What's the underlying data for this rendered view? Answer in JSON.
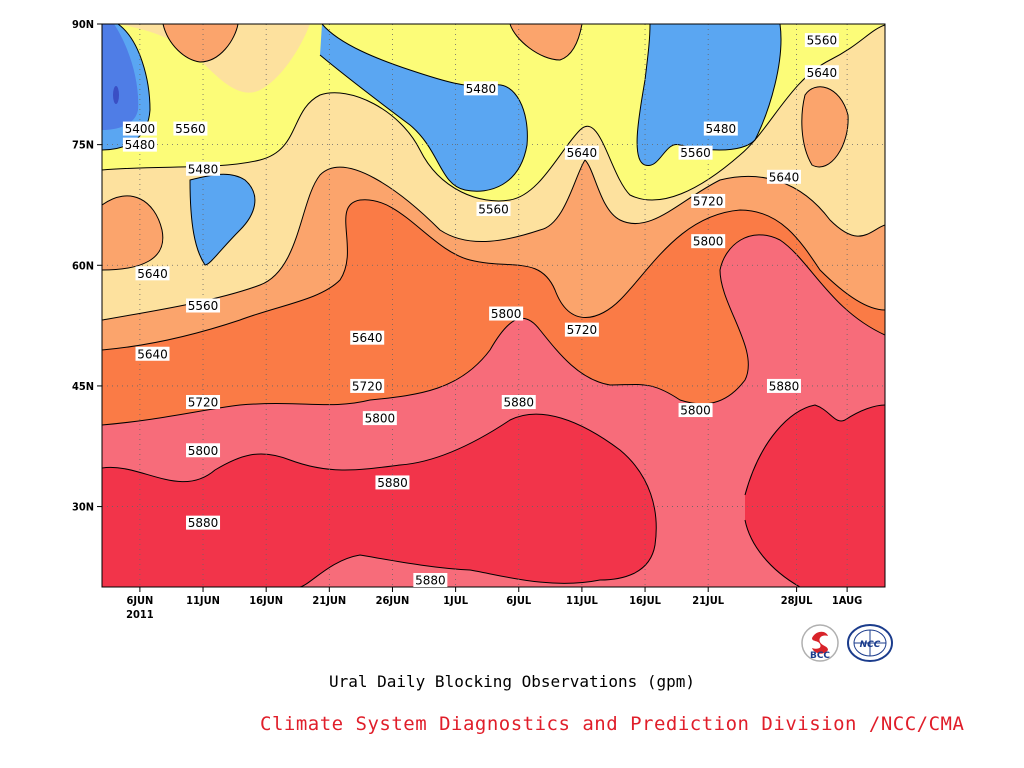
{
  "chart_data": {
    "type": "heatmap",
    "xlabel": "",
    "ylabel": "",
    "x_ticks": [
      "6JUN",
      "11JUN",
      "16JUN",
      "21JUN",
      "26JUN",
      "1JUL",
      "6JUL",
      "11JUL",
      "16JUL",
      "21JUL",
      "28JUL",
      "1AUG"
    ],
    "x_tick_year": "2011",
    "y_ticks": [
      "30N",
      "45N",
      "60N",
      "75N",
      "90N"
    ],
    "ylim": [
      "20N",
      "90N"
    ],
    "contour_levels": [
      5400,
      5480,
      5560,
      5640,
      5720,
      5800,
      5880
    ],
    "shading_colors": {
      "below_5400": "#4f7de6",
      "5400_5480": "#5aa6f2",
      "5480_5560": "#fcfc78",
      "5560_5640": "#fde19e",
      "5640_5720": "#fba46c",
      "5720_5800": "#fa7b46",
      "5800_5880": "#f76c7a",
      "above_5880": "#f2344a"
    },
    "contour_labels": [
      {
        "text": "5560",
        "date": "10JUN",
        "lat": "77N"
      },
      {
        "text": "5400",
        "date": "6JUN",
        "lat": "77N"
      },
      {
        "text": "5480",
        "date": "6JUN",
        "lat": "75N"
      },
      {
        "text": "5480",
        "date": "3JUL",
        "lat": "82N"
      },
      {
        "text": "5480",
        "date": "11JUN",
        "lat": "72N"
      },
      {
        "text": "5640",
        "date": "7JUN",
        "lat": "59N"
      },
      {
        "text": "5560",
        "date": "11JUN",
        "lat": "55N"
      },
      {
        "text": "5640",
        "date": "7JUN",
        "lat": "49N"
      },
      {
        "text": "5640",
        "date": "24JUN",
        "lat": "51N"
      },
      {
        "text": "5720",
        "date": "11JUN",
        "lat": "43N"
      },
      {
        "text": "5720",
        "date": "24JUN",
        "lat": "45N"
      },
      {
        "text": "5800",
        "date": "11JUN",
        "lat": "37N"
      },
      {
        "text": "5800",
        "date": "25JUN",
        "lat": "41N"
      },
      {
        "text": "5880",
        "date": "11JUN",
        "lat": "28N"
      },
      {
        "text": "5880",
        "date": "26JUN",
        "lat": "33N"
      },
      {
        "text": "5880",
        "date": "29JUN",
        "lat": "20N"
      },
      {
        "text": "5560",
        "date": "4JUL",
        "lat": "67N"
      },
      {
        "text": "5640",
        "date": "11JUL",
        "lat": "74N"
      },
      {
        "text": "5800",
        "date": "5JUL",
        "lat": "54N"
      },
      {
        "text": "5720",
        "date": "11JUL",
        "lat": "52N"
      },
      {
        "text": "5880",
        "date": "6JUL",
        "lat": "43N"
      },
      {
        "text": "5800",
        "date": "20JUL",
        "lat": "42N"
      },
      {
        "text": "5480",
        "date": "22JUL",
        "lat": "77N"
      },
      {
        "text": "5560",
        "date": "20JUL",
        "lat": "74N"
      },
      {
        "text": "5720",
        "date": "21JUL",
        "lat": "68N"
      },
      {
        "text": "5800",
        "date": "21JUL",
        "lat": "63N"
      },
      {
        "text": "5640",
        "date": "27JUL",
        "lat": "71N"
      },
      {
        "text": "5560",
        "date": "30JUL",
        "lat": "88N"
      },
      {
        "text": "5640",
        "date": "30JUL",
        "lat": "84N"
      },
      {
        "text": "5880",
        "date": "27JUL",
        "lat": "45N"
      }
    ],
    "title": "Ural Daily Blocking Observations (gpm)"
  },
  "footer": {
    "credit": "Climate System Diagnostics and Prediction Division /NCC/CMA",
    "logo_left_text": "BCC",
    "logo_right_text": "NCC"
  }
}
